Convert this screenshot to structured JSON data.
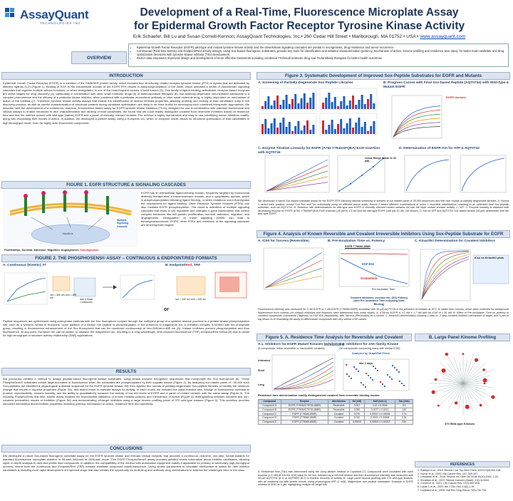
{
  "header": {
    "logo_text": "AssayQuant",
    "logo_sub": "TECHNOLOGIES INC.",
    "title_line1": "Development of a Real-Time, Fluorescence Microplate Assay",
    "title_line2": "for Epidermal Growth Factor Receptor Tyrosine Kinase Activity",
    "authors": "Erik Schaefer, Bill Lu and Susan Cornell-Kennon; AssayQuant Technologies, Inc.• 260 Cedar Hill Street • Marlborough, MA 01752 • USA • ",
    "url": "www.assayquant.com"
  },
  "overview": {
    "label": "OVERVIEW",
    "bullets": [
      "Epidermal Growth Factor Receptor (EGFR) wild-type and mutant tyrosine kinase activity and the downstream signaling cascades are pivotal in oncogenesis, drug resistance and tumor recurrence",
      "Continuous (Real-time kinetic) and Endpoint/Red activity assays, using Sox-based fluorogenic substrates, provide key tools for identification and detailed characterization (potency, mechanism of action, kinome profiling and residence time data), for better lead candidate and drug optimization decisions with tyrosine kinase inhibitor (TKI) development",
      "Richer data empowers improved design and development of more effective treatments including combined TKI/small molecule drug and TKI/antibody therapies for better health outcomes"
    ]
  },
  "intro": {
    "heading": "INTRODUCTION",
    "text": "Epidermal Growth Factor Receptor (EGFR) is a member of the ErbB/HER protein family, which includes four structurally related receptor tyrosine kinase (RTK) enzymes that are activated by different ligands (1,2) (Figure 1). Binding of EGF to the extracellular domain of the EGFR RTK results in autophosphorylation of the dimer, which activates a series of downstream signaling cascades that regulate multiple cellular functions, or when deregulated, is one of the most frequent causes of solid tumors (3). This family of ligand-binding, activatable, receptor-based enzymes are active targets for drug discovery (4), particularly in combination with other small molecule drugs (5) or antibody-based therapies (6). But antibody-dependent cell-mediated cytotoxicity is a complex phenomenon and the efficacy of a particular kinase inhibitor, when combined with a particular monoclonal antibody or other small molecule drug, is highly dependent on mechanism of action of the inhibitor (7). Therefore, tyrosine kinase activity assays that enable the identification of diverse inhibitor properties, allowing profiling and ranking of lead candidates early in the discovery process, as well as careful characterization of structural variants during candidate optimization, are likely to be more fruitful for developing such combined therapeutic approaches. We describe here the development of a continuous, real-time, fluorescence-based assay for EGFR tyrosine kinase inhibitors (TKI's), designed for use in combination with standard biochemical and cellular assays to enable enhanced in vitro characterization and ranking of lead candidates. We found that we could readily distinguish covalent from reversible inhibitors based on residence time and that the method worked with wild-type (native) EGFR and a panel of clinically relevant mutants. The method is highly reproducible and easy to use, identifying known inhibitors readily, along with elucidating their modes of action. In addition, we developed a partner assay, using a Europium ion, which, in endpoint mode, allows for structural optimization of lead candidates in high-throughput mode, even for highly auto-fluorescent compounds."
  },
  "fig1": {
    "heading": "FIGURE 1. EGFR STRUCTURE & SIGNALING CASCADES",
    "text": "EGFR has an extracellular ligand-binding domain, frequently targeted by monoclonal antibody therapeutics, a transmembrane domain, and a cytoplasmic domain, which is autophosphorylated following ligand binding, or when mutations occur that bypass the requirement for ligand binding. Other Receptor Tyrosine Kinases (RTKs) can also mediate EGFR phosphorylation. The result is activation of multiple signaling cascades that leads to cell regulation and changes in gene transcription that control complex behaviors like cell growth, proliferation, survival, adhesion, migration, and angiogenesis. Deregulation of these signaling events can lead to tumorigenesis/cancer. EGFR, other RTKs and members of the signaling cascades are all therapeutic targets.",
    "caption": "Proliferation, Survival, Adhesion, Migration, Angiogenesis",
    "tumor": "Tumorigenesis",
    "cascades": "Multiple Signaling Cascade",
    "nucleus": "Nucleus"
  },
  "fig2": {
    "heading": "FIGURE 2. THE PHOSPHOSENS® ASSAY – CONTINUOUS & ENDPOINT/RED FORMATS",
    "a_label": "A. Continuous (Kinetic), Fl",
    "b_label_pre": "B. Endpoint/",
    "b_label_red": "Red",
    "b_label_post": ", TRF",
    "or": "or",
    "wavelengths_a": "λex = 360 nm  λem = 485 nm",
    "wavelengths_b": "λex = 340 nm  λem = 615 nm",
    "add": "Add & Read Continuous",
    "text": "Peptide sequences are synthesized using solid-phase methods with the Sox fluorophore coupled through the sulfhydryl group of a cysteine residue proximal to a protein kinase phosphorylation site, such as a tyrosine, serine or threonine. Upon addition of a kinase, the peptide is phosphorylated. In the presence of magnesium ion, a chelation complex is formed with the phosphate group, resulting in fluorescence enhancement of the Sox fluorophore that can be monitored continuously at λex=360/λem=485 nm (A). Kinase inhibitors prevent phosphorylation and thus fluorescence. At any point, Europium ion can be added, to displace the magnesium ion, resulting in a long wavelength, time-resolved fluorescence (TRF) endpoint/Red format (B) that is useful for high-throughput or structure activity relationship (SAR) applications."
  },
  "results": {
    "heading": "RESULTS",
    "text": "We previously created a method to design peptide-based fluorogenic kinase substrates, using kinase enzyme recognition sequences that incorporate the Sox fluorophore (8). These PhosphoSens® substrates exhibit large increases in fluorescence when the substrates are phosphorylated by their cognate kinase (Figure 2). By analyzing our master panel of ~30,000 such Sox-peptides, we identified a physiological substrate sequence for the EGFR tyrosine kinase. We then applied two rounds of partially-degenerate Sox-peptide libraries to identify the minimum change that results in superior properties (Figure 3A), and tested those in replicate assays for activity. In each round, we included the initial reaction rate, linkage of fluorescence increase to product, reproducibility, enzyme linearity, and the ability to quantitatively measure the activity of low nM levels of EGFR and a panel of mutant variants with the same assay (Figure 3). The resulting PhosphoSens real-time, kinetic assay enabled the reproducible validation of known inhibitor potency and mechanism of action (Figure 4), distinguishing between covalent and non-covalent (reversible) modes of inhibition (Figure 5A) and demonstrating off-target inhibition using a large kinome profiling panel of 370 wild-type kinases (Figure 5). This workflow provides important information about inhibitor properties including potency, mechanism of action, residence time and specificity."
  },
  "conclusions": {
    "heading": "CONCLUSIONS",
    "text": "We developed a robust Sox-based fluorogenic substrate assay for the EGFR tyrosine kinase and relevant clinical mutants, that provides a continuous, real-time, one-step, format suitable for standard fluorescence microplate readers, in 96-well, 384-well or 1536-well mode. This EGFR PhosphoSens® assay provides detailed kinetic information about inhibitor candidates, allowing rapid, in-depth analysis to rank and profile lead compounds. In addition, the compatibility of the method with automation equipment makes it applicable for primary or secondary high-throughput screens, where both the continuous and Endpoint/Red (TRF) formats eliminate compound autofluorescence. Using kinetic parameters to elucidate mechanism of action for new inhibitor candidates is enabling more rapid development of improved drugs that also creates the opportunity for multi-drug and antibody-drug combinations to address the challenges seen in the clinic."
  },
  "fig3": {
    "heading": "Figure 3. Systematic Development of Improved Sox-Peptide Substrates for EGFR and Mutants",
    "a": "A. Screening of Partially-Degenerate Sox-Peptide Libraries",
    "b": "B. Progress Curves with Final Sox-based Peptide (AQT0734) with Wild-type & Mutant EGFR",
    "b_legend": "EGFR Variants",
    "c": "C. Enzyme Titration Linearity for EGFR (A763 Y764insFQEA) Ex20 Insertion with AQT0734",
    "c_linear": "Linear Range (down to 40 pM)",
    "d": "D. Determination of EGFR Km for ATP & AQT0734",
    "caption": "We developed a robust Sox-based substrate assay for the EGFR RTK following rational screening of subsets of our master panel of 30,000 sequences and then two rounds of partially degenerate libraries. A. Round 1 varied each position, except Cox Sox and Tyr, individually using 18 different amino acids. Round 2 tested different combinations of round 1 favorable substitutions, resulting in an optimized final Sox-peptide substrate, such as AQT0734. B. Reaction rate determinations for wild-type and EGFR & clinically relevant mutant variants. All had the triple mutant showed activity >= WT. C. Enzyme linearity is obtained with decreasing enzyme for EGFR (A763 Y764insFQEA) Ex20 insertion (40 pM to 1.3 nM and the wild-type EGFR (160 pM-10 nM, not shown). D. Km for ATP and AQT0734 Sox-based sensor (35 µM) determined with the wild-type EGFR."
  },
  "fig4": {
    "heading": "Figure 4. Analysis of Known Reversible and Covalent Irreversible Inhibitors Using Sox-Peptide Substrate for EGFR",
    "a": "A. IC50 for Tarceva (Reversible)",
    "b": "B. Pre-Incubation Time vs. Potency",
    "b_sub": "EGFR T790M/L858R",
    "b_egf": "EGF-816",
    "b_osim": "Osimertinib",
    "b_xlabel": "Pre-Incubation Time",
    "b_ylabel": "% of Pre-Incubation",
    "b_note": "Covalent Inhibitors: Increase Inh. (DO) Potency (with Pre-Incubation Time Indicating Slow Binding)",
    "c": "C. Kinact/Ki Determination for Covalent Inhibitors",
    "c_tag": "ICso vs Kinact/Ki plots",
    "caption": "Fluorescence intensity was measured for 3 nM EGFR or 1 nM EGFR (T790M/L858R) incubated with 30 µM AQT0734 in the presence of inhibitor at 30°C to obtain time courses, which were corrected for background fluorescence from controls (no kinase) reactions and reactions were determined from initial slopes. A. IC50 for EGFR is 0.2 nM ± 1.7 nM with an IC50 of 1.30 nM. B. Effect of Pre-Incubation Time on potency of covalent compounds Osimertinib (Tagrisso) vs EGF-816 (Nazartinib), with Tarceva (Reversible) as a control. C. Kinact/Ki determination showing 1-step vs. 2-step covalent inhibitor mechanism of target, and a plot of log Kinact vs Ki illustrating the ability to differentiate compounds with very similar IC50 values."
  },
  "fig5": {
    "heading": "Figure 5. A. Residence Time Analysis for Reversible and Covalent Inhibitors",
    "b": "B. Large Panel Kinome Profiling",
    "a1": "A.1. Inhibitors for EGFR Mutant Kinases",
    "a1_sub": "(5 compounds, either reversible or irreversible covalent)",
    "a2": "A.2. Inhibitors for JAK-family Kinase",
    "a2_sub": "(30 compounds comparing many with similar IC50)",
    "graphpad": "Analyzed by GraphPad Prism",
    "long": "Long",
    "short": "Short",
    "untreated": "Untreated",
    "fifty": "50% of data",
    "mid": "Idle 3 days",
    "table_caption": "Residence time determination readily distinguished covalent from reversible binding modes:",
    "table_headers": [
      "Compound",
      "Enzyme",
      "Mechanism",
      "Kd (nM)",
      "Koff (min-1)",
      "Tau (min)"
    ],
    "table_rows": [
      [
        "Compound A",
        "EGFR (T790M/C797S/L858R)",
        "Reversible",
        "0.007",
        "0.12 ± 0.0006",
        "8.3"
      ],
      [
        "Compound B",
        "EGFR (T790M/C797S/L858R)",
        "Reversible",
        "0.050",
        "0.0077 ± 0.0013",
        "130"
      ],
      [
        "Compound C",
        "EGFR (T790M/L858R)",
        "Covalent",
        "0.070",
        "0.00027 ± 0.00006",
        "3.7k"
      ],
      [
        "Compound D",
        "EGFR (T790M/L858R)",
        "Covalent",
        "0.032",
        "0.0003 ± 0.00008",
        "3.3k"
      ],
      [
        "Compound E",
        "EGFR (T790M/L858R)",
        "Covalent",
        "0.00003",
        "0.00003 ± 0.00002",
        "33k"
      ]
    ],
    "kinases": "370 Wild-type Kinases",
    "caption": "A. Residence time (Tau) was determined using the Jump-dilution method of Copeland (7). Compounds were incubated with each enzyme (1-4 nM) at 20x the IC50 value for 60 min, followed by a 250-fold dilution and then fluorescence intensity was measured with 30 µM AQT0734 (A.1) or AQT0600 (A.2) to monitor recovery of activity. B. Large panel kinome profiling with 370 wild-type kinases, with all reactions run with kinetic format, using physiological ATP (1 mM), Magnesium and peptide substrates. Example is EGFR inhibitor M-4020 at 1 µM, highlighting multiple off-target hits."
  },
  "references": {
    "heading": "REFERENCES",
    "items": [
      "Siddiqui et al., 2019. Review Curr Top Med Chem. 2019;19(5):400-418.",
      "Kumar et al., 2020. Nat Cancer Res. 197: 309-347.",
      "Lombardo et al., 2018. Review Int J Mol Sci. 2018;19(10):2916, 1-20.",
      "Khrabkov et al., 2021. Review Cancers (Basel). 13(13):3344.",
      "Cornell et al., 2021. Clin Cancer Res. 27(3):807-818.",
      "Lukas C et al., 2020. Am J Clin Onc. 13(2):1-19.",
      "Copeland et al., 2006. Nat Rev Drug Discov. 5(9):730-739."
    ]
  },
  "colors": {
    "navy": "#1d3557",
    "accent_red": "#d62828",
    "section_bg": "#dbe4ef",
    "blue_series": "#1f5fbf"
  }
}
